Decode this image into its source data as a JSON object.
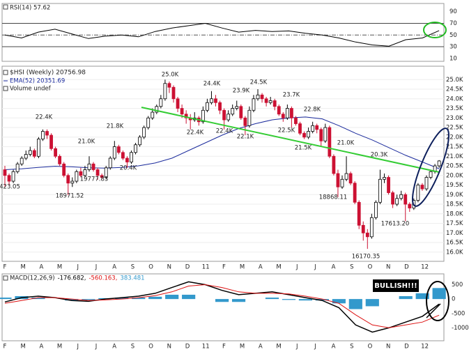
{
  "chart_data": [
    {
      "type": "line",
      "name": "RSI(14) 57.62",
      "color": "#000000",
      "values": [
        50,
        45,
        55,
        60,
        52,
        44,
        48,
        50,
        47,
        56,
        62,
        66,
        70,
        62,
        55,
        58,
        56,
        57,
        53,
        50,
        45,
        38,
        33,
        31,
        42,
        45,
        57.62
      ],
      "ylim": [
        5,
        104
      ],
      "yticks": [
        90,
        70,
        50,
        30,
        10
      ],
      "dashed_tick": 50,
      "solid_ticks": [
        70,
        30
      ]
    },
    {
      "type": "candlestick",
      "name": "$HSI (Weekly) 20756.98",
      "volume_label": "Volume undef",
      "up_color": "#ffffff",
      "down_color": "#cc1133",
      "candles": [
        [
          20300,
          20500,
          19423,
          20000
        ],
        [
          20000,
          20100,
          19500,
          19700
        ],
        [
          19700,
          20300,
          19600,
          20200
        ],
        [
          20200,
          20700,
          20100,
          20600
        ],
        [
          20600,
          21000,
          20500,
          20900
        ],
        [
          20900,
          21300,
          20800,
          21100
        ],
        [
          21100,
          21500,
          21000,
          21300
        ],
        [
          21300,
          21400,
          20900,
          21000
        ],
        [
          21000,
          22000,
          20900,
          21900
        ],
        [
          21900,
          22400,
          21800,
          22300
        ],
        [
          22300,
          22400,
          21900,
          22100
        ],
        [
          22100,
          22200,
          21300,
          21400
        ],
        [
          21400,
          21500,
          20900,
          21000
        ],
        [
          21000,
          21100,
          20500,
          20600
        ],
        [
          20600,
          20700,
          19900,
          20000
        ],
        [
          20000,
          20100,
          18972,
          19600
        ],
        [
          19600,
          19900,
          19400,
          19700
        ],
        [
          19700,
          20300,
          19600,
          20200
        ],
        [
          20200,
          20400,
          19900,
          20000
        ],
        [
          20000,
          20500,
          19900,
          20300
        ],
        [
          20300,
          21000,
          20200,
          20600
        ],
        [
          20600,
          20700,
          20200,
          20300
        ],
        [
          20300,
          20400,
          19778,
          20000
        ],
        [
          20000,
          20100,
          19800,
          19900
        ],
        [
          19900,
          20500,
          19800,
          20400
        ],
        [
          20400,
          21000,
          20300,
          20900
        ],
        [
          20900,
          21800,
          20800,
          21500
        ],
        [
          21500,
          21600,
          21100,
          21200
        ],
        [
          21200,
          21300,
          20800,
          20900
        ],
        [
          20900,
          21000,
          20400,
          20700
        ],
        [
          20700,
          21300,
          20600,
          21200
        ],
        [
          21200,
          21700,
          21100,
          21600
        ],
        [
          21600,
          22100,
          21500,
          22000
        ],
        [
          22000,
          22600,
          21900,
          22500
        ],
        [
          22500,
          23100,
          22400,
          23000
        ],
        [
          23000,
          23500,
          22900,
          23300
        ],
        [
          23300,
          23700,
          23200,
          23600
        ],
        [
          23600,
          24200,
          23500,
          24000
        ],
        [
          24000,
          25000,
          23900,
          24800
        ],
        [
          24800,
          24900,
          24300,
          24600
        ],
        [
          24600,
          24700,
          23800,
          24000
        ],
        [
          24000,
          24100,
          23300,
          23500
        ],
        [
          23500,
          23700,
          23000,
          23200
        ],
        [
          23200,
          23400,
          22700,
          23000
        ],
        [
          23000,
          23200,
          22400,
          22900
        ],
        [
          22900,
          23300,
          22800,
          23000
        ],
        [
          23000,
          23100,
          22600,
          22800
        ],
        [
          22800,
          23600,
          22700,
          23400
        ],
        [
          23400,
          24000,
          23300,
          23800
        ],
        [
          23800,
          24400,
          23700,
          24000
        ],
        [
          24000,
          24200,
          23600,
          23800
        ],
        [
          23800,
          23900,
          23200,
          23400
        ],
        [
          23400,
          23500,
          22400,
          22900
        ],
        [
          22900,
          23400,
          22800,
          23200
        ],
        [
          23200,
          23700,
          23100,
          23500
        ],
        [
          23500,
          23900,
          23400,
          23600
        ],
        [
          23600,
          23700,
          22900,
          23000
        ],
        [
          23000,
          23100,
          22100,
          22600
        ],
        [
          22600,
          23600,
          22500,
          23400
        ],
        [
          23400,
          24200,
          23300,
          24000
        ],
        [
          24000,
          24500,
          23900,
          24200
        ],
        [
          24200,
          24300,
          23800,
          24000
        ],
        [
          24000,
          24100,
          23600,
          23800
        ],
        [
          23800,
          24100,
          23700,
          23900
        ],
        [
          23900,
          24000,
          23400,
          23600
        ],
        [
          23600,
          23700,
          23100,
          23200
        ],
        [
          23200,
          23300,
          22800,
          23000
        ],
        [
          23000,
          23700,
          22900,
          23500
        ],
        [
          23500,
          23600,
          22500,
          23000
        ],
        [
          23000,
          23100,
          22600,
          22700
        ],
        [
          22700,
          22800,
          22100,
          22200
        ],
        [
          22200,
          22300,
          21900,
          22000
        ],
        [
          22000,
          22500,
          21900,
          22300
        ],
        [
          22300,
          22800,
          22200,
          22600
        ],
        [
          22600,
          22700,
          22200,
          22400
        ],
        [
          22400,
          22500,
          21500,
          21800
        ],
        [
          21800,
          22700,
          21700,
          22500
        ],
        [
          22500,
          22600,
          20900,
          21000
        ],
        [
          21000,
          21100,
          20000,
          20100
        ],
        [
          20100,
          20300,
          18868,
          19400
        ],
        [
          19400,
          20000,
          19300,
          19800
        ],
        [
          19800,
          21000,
          19700,
          20100
        ],
        [
          20100,
          20200,
          19500,
          19600
        ],
        [
          19600,
          19700,
          18500,
          18600
        ],
        [
          18600,
          18700,
          17200,
          17400
        ],
        [
          17400,
          17600,
          16600,
          17000
        ],
        [
          17000,
          17200,
          16170,
          16800
        ],
        [
          16800,
          18000,
          16700,
          17800
        ],
        [
          17800,
          18700,
          17700,
          18600
        ],
        [
          18600,
          20300,
          18500,
          19800
        ],
        [
          19800,
          20100,
          19600,
          19900
        ],
        [
          19900,
          20000,
          19000,
          19100
        ],
        [
          19100,
          19200,
          18300,
          18500
        ],
        [
          18500,
          19000,
          18400,
          18800
        ],
        [
          18800,
          19200,
          18700,
          19000
        ],
        [
          19000,
          19100,
          17613,
          18500
        ],
        [
          18500,
          18600,
          18100,
          18300
        ],
        [
          18300,
          18800,
          18200,
          18700
        ],
        [
          18700,
          19600,
          18600,
          19500
        ],
        [
          19500,
          19600,
          19200,
          19300
        ],
        [
          19300,
          20000,
          19200,
          19900
        ],
        [
          19900,
          20300,
          19800,
          20200
        ],
        [
          20200,
          20600,
          20100,
          20500
        ],
        [
          20500,
          20800,
          20400,
          20757
        ]
      ],
      "overlays": [
        {
          "name": "EMA(52) 20351.69",
          "color": "#1a2a9c",
          "values": [
            20300,
            20350,
            20420,
            20480,
            20450,
            20400,
            20380,
            20420,
            20500,
            20650,
            20900,
            21300,
            21700,
            22100,
            22450,
            22700,
            22900,
            23000,
            23050,
            22950,
            22600,
            22200,
            21850,
            21450,
            21050,
            20700,
            20352
          ]
        }
      ],
      "ylim": [
        15520,
        25700
      ],
      "yticks": [
        {
          "value": 16000,
          "label": "16.0K"
        },
        {
          "value": 16500,
          "label": "16.5K"
        },
        {
          "value": 17000,
          "label": "17.0K"
        },
        {
          "value": 17500,
          "label": "17.5K"
        },
        {
          "value": 18000,
          "label": "18.0K"
        },
        {
          "value": 18500,
          "label": "18.5K"
        },
        {
          "value": 19000,
          "label": "19.0K"
        },
        {
          "value": 19500,
          "label": "19.5K"
        },
        {
          "value": 20000,
          "label": "20.0K"
        },
        {
          "value": 20500,
          "label": "20.5K"
        },
        {
          "value": 21000,
          "label": "21.0K"
        },
        {
          "value": 21500,
          "label": "21.5K"
        },
        {
          "value": 22000,
          "label": "22.0K"
        },
        {
          "value": 22500,
          "label": "22.5K"
        },
        {
          "value": 23000,
          "label": "23.0K"
        },
        {
          "value": 23500,
          "label": "23.5K"
        },
        {
          "value": 24000,
          "label": "24.0K"
        },
        {
          "value": 24500,
          "label": "24.5K"
        },
        {
          "value": 25000,
          "label": "25.0K"
        }
      ],
      "x_labels": [
        "F",
        "M",
        "A",
        "M",
        "J",
        "J",
        "A",
        "S",
        "O",
        "N",
        "D",
        "11",
        "F",
        "M",
        "A",
        "M",
        "J",
        "J",
        "A",
        "S",
        "O",
        "N",
        "D",
        "12"
      ],
      "annotations": [
        "22.4K",
        "21.0K",
        "21.8K",
        "20.4K",
        "25.0K",
        "22.4K",
        "24.4K",
        "22.4K",
        "23.9K",
        "22.1K",
        "24.5K",
        "23.7K",
        "22.5K",
        "22.8K",
        "21.5K",
        "21.0K",
        "20.3K",
        "423.05",
        "18971.52",
        "19777.83",
        "18868.11",
        "17613.20",
        "16170.35"
      ],
      "grid": true
    },
    {
      "type": "macd",
      "name": "MACD(12,26,9)",
      "series": [
        {
          "name": "-176.682,",
          "color": "#000000",
          "kind": "line",
          "values": [
            -100,
            50,
            100,
            50,
            -50,
            -80,
            0,
            50,
            100,
            200,
            400,
            600,
            500,
            300,
            150,
            200,
            250,
            150,
            50,
            -50,
            -300,
            -900,
            -1150,
            -1000,
            -800,
            -600,
            -177
          ]
        },
        {
          "name": "-560.163,",
          "color": "#dd1111",
          "kind": "line",
          "values": [
            -150,
            -50,
            50,
            50,
            0,
            -50,
            -30,
            0,
            50,
            120,
            250,
            450,
            500,
            400,
            250,
            200,
            200,
            180,
            100,
            0,
            -150,
            -550,
            -900,
            -1000,
            -900,
            -800,
            -560
          ]
        },
        {
          "name": "383.481",
          "color": "#3399cc",
          "kind": "bar",
          "values": [
            50,
            100,
            50,
            0,
            -50,
            -30,
            30,
            50,
            50,
            80,
            150,
            150,
            0,
            -100,
            -100,
            0,
            50,
            -30,
            -50,
            -50,
            -150,
            -350,
            -250,
            0,
            100,
            200,
            383
          ]
        }
      ],
      "ylim": [
        -1450,
        875
      ],
      "yticks": [
        500,
        0,
        -500,
        -1000
      ],
      "annotation": "BULLISH!!!",
      "x_labels": [
        "F",
        "M",
        "A",
        "M",
        "J",
        "J",
        "A",
        "S",
        "O",
        "N",
        "D",
        "11",
        "F",
        "M",
        "A",
        "M",
        "J",
        "J",
        "A",
        "S",
        "O",
        "N",
        "D",
        "12"
      ]
    }
  ]
}
